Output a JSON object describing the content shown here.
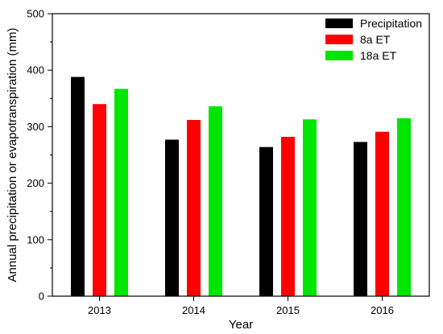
{
  "chart_data": {
    "type": "bar",
    "title": "",
    "xlabel": "Year",
    "ylabel": "Annual precipitation or evapotranspiration (mm)",
    "categories": [
      "2013",
      "2014",
      "2015",
      "2016"
    ],
    "series": [
      {
        "name": "Precipitation",
        "color": "#000000",
        "values": [
          388,
          277,
          264,
          273
        ]
      },
      {
        "name": "8a ET",
        "color": "#ff0000",
        "values": [
          340,
          312,
          282,
          291
        ]
      },
      {
        "name": "18a ET",
        "color": "#00e600",
        "values": [
          367,
          336,
          313,
          315
        ]
      }
    ],
    "ylim": [
      0,
      500
    ],
    "yticks": [
      0,
      100,
      200,
      300,
      400,
      500
    ],
    "grid": false,
    "legend_position": "top-right"
  }
}
